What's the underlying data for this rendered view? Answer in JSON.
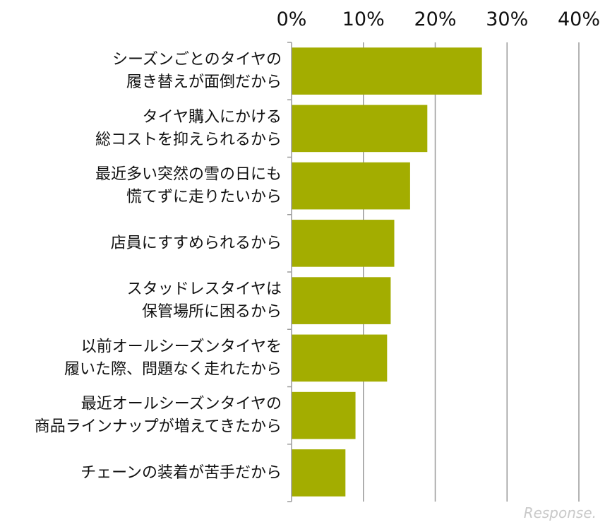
{
  "chart_data": {
    "type": "bar",
    "orientation": "horizontal",
    "x_ticks": [
      "0%",
      "10%",
      "20%",
      "30%",
      "40%"
    ],
    "xlim": [
      0,
      40
    ],
    "grid": true,
    "bar_color": "#a3ad00",
    "categories": [
      [
        "シーズンごとのタイヤの",
        "履き替えが面倒だから"
      ],
      [
        "タイヤ購入にかける",
        "総コストを抑えられるから"
      ],
      [
        "最近多い突然の雪の日にも",
        "慌てずに走りたいから"
      ],
      [
        "店員にすすめられるから"
      ],
      [
        "スタッドレスタイヤは",
        "保管場所に困るから"
      ],
      [
        "以前オールシーズンタイヤを",
        "履いた際、問題なく走れたから"
      ],
      [
        "最近オールシーズンタイヤの",
        "商品ラインナップが増えてきたから"
      ],
      [
        "チェーンの装着が苦手だから"
      ]
    ],
    "values": [
      26.5,
      18.9,
      16.5,
      14.3,
      13.8,
      13.3,
      8.9,
      7.5
    ]
  },
  "watermark": "Response."
}
